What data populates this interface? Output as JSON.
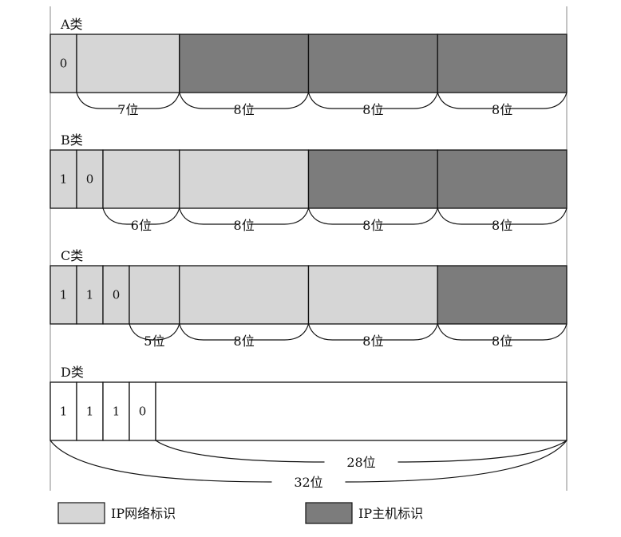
{
  "colors": {
    "network": "#d6d6d6",
    "host": "#7c7c7c",
    "empty": "#ffffff",
    "line": "#111111"
  },
  "classes": [
    {
      "id": "a",
      "label": "A类",
      "cells": [
        {
          "text": "0",
          "type": "network",
          "bits": 1
        },
        {
          "text": "",
          "type": "network",
          "bits": 7
        },
        {
          "text": "",
          "type": "host",
          "bits": 8
        },
        {
          "text": "",
          "type": "host",
          "bits": 8
        },
        {
          "text": "",
          "type": "host",
          "bits": 8
        }
      ],
      "braces": [
        {
          "label": "7位",
          "from_bit": 1,
          "to_bit": 8
        },
        {
          "label": "8位",
          "from_bit": 8,
          "to_bit": 16
        },
        {
          "label": "8位",
          "from_bit": 16,
          "to_bit": 24
        },
        {
          "label": "8位",
          "from_bit": 24,
          "to_bit": 32
        }
      ]
    },
    {
      "id": "b",
      "label": "B类",
      "cells": [
        {
          "text": "1",
          "type": "network",
          "bits": 1
        },
        {
          "text": "0",
          "type": "network",
          "bits": 1
        },
        {
          "text": "",
          "type": "network",
          "bits": 6
        },
        {
          "text": "",
          "type": "network",
          "bits": 8
        },
        {
          "text": "",
          "type": "host",
          "bits": 8
        },
        {
          "text": "",
          "type": "host",
          "bits": 8
        }
      ],
      "braces": [
        {
          "label": "6位",
          "from_bit": 2,
          "to_bit": 8
        },
        {
          "label": "8位",
          "from_bit": 8,
          "to_bit": 16
        },
        {
          "label": "8位",
          "from_bit": 16,
          "to_bit": 24
        },
        {
          "label": "8位",
          "from_bit": 24,
          "to_bit": 32
        }
      ]
    },
    {
      "id": "c",
      "label": "C类",
      "cells": [
        {
          "text": "1",
          "type": "network",
          "bits": 1
        },
        {
          "text": "1",
          "type": "network",
          "bits": 1
        },
        {
          "text": "0",
          "type": "network",
          "bits": 1
        },
        {
          "text": "",
          "type": "network",
          "bits": 5
        },
        {
          "text": "",
          "type": "network",
          "bits": 8
        },
        {
          "text": "",
          "type": "network",
          "bits": 8
        },
        {
          "text": "",
          "type": "host",
          "bits": 8
        }
      ],
      "braces": [
        {
          "label": "5位",
          "from_bit": 3,
          "to_bit": 8
        },
        {
          "label": "8位",
          "from_bit": 8,
          "to_bit": 16
        },
        {
          "label": "8位",
          "from_bit": 16,
          "to_bit": 24
        },
        {
          "label": "8位",
          "from_bit": 24,
          "to_bit": 32
        }
      ]
    },
    {
      "id": "d",
      "label": "D类",
      "cells": [
        {
          "text": "1",
          "type": "empty",
          "bits": 1
        },
        {
          "text": "1",
          "type": "empty",
          "bits": 1
        },
        {
          "text": "1",
          "type": "empty",
          "bits": 1
        },
        {
          "text": "0",
          "type": "empty",
          "bits": 1
        },
        {
          "text": "",
          "type": "empty",
          "bits": 28
        }
      ],
      "braces": [
        {
          "label": "28位",
          "from_bit": 4,
          "to_bit": 32
        },
        {
          "label": "32位",
          "from_bit": 0,
          "to_bit": 32
        }
      ]
    }
  ],
  "legend": [
    {
      "label": "IP网络标识",
      "type": "network"
    },
    {
      "label": "IP主机标识",
      "type": "host"
    }
  ]
}
